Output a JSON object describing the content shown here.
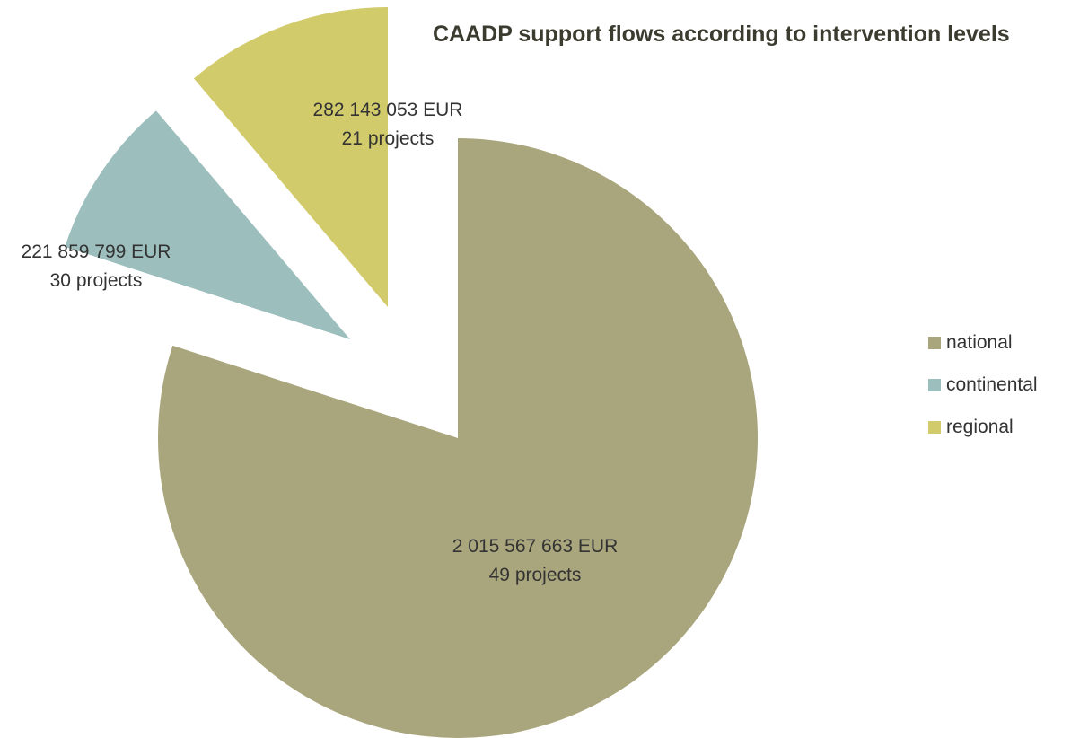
{
  "chart_data": {
    "type": "pie",
    "title": "CAADP support flows according to intervention levels",
    "exploded": true,
    "legend_position": "right",
    "slices": [
      {
        "name": "national",
        "value": 2015567663,
        "amount_label": "2 015 567 663 EUR",
        "projects_label": "49 projects",
        "color": "#a9a57c"
      },
      {
        "name": "continental",
        "value": 221859799,
        "amount_label": "221 859 799 EUR",
        "projects_label": "30 projects",
        "color": "#9cbebd"
      },
      {
        "name": "regional",
        "value": 282143053,
        "amount_label": "282 143 053 EUR",
        "projects_label": "21 projects",
        "color": "#d2cb6c"
      }
    ]
  }
}
